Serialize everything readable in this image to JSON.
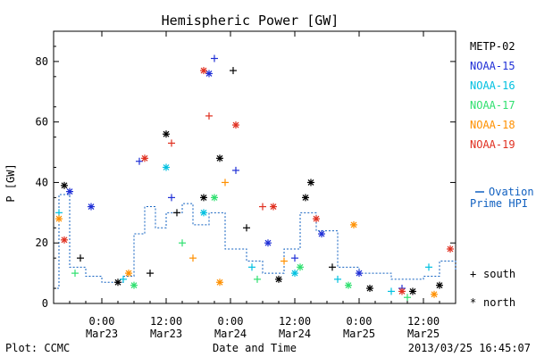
{
  "chart_data": {
    "type": "scatter",
    "title": "Hemispheric Power [GW]",
    "xlabel": "Date and Time",
    "ylabel": "P [GW]",
    "xlim": [
      "2013-03-22T15:00",
      "2013-03-25T18:00"
    ],
    "ylim": [
      0,
      90
    ],
    "yticks": [
      0,
      20,
      40,
      60,
      80
    ],
    "xticks": [
      {
        "at": "2013-03-23T00:00",
        "time": "0:00",
        "date": "Mar23"
      },
      {
        "at": "2013-03-23T12:00",
        "time": "12:00",
        "date": "Mar23"
      },
      {
        "at": "2013-03-24T00:00",
        "time": "0:00",
        "date": "Mar24"
      },
      {
        "at": "2013-03-24T12:00",
        "time": "12:00",
        "date": "Mar24"
      },
      {
        "at": "2013-03-25T00:00",
        "time": "0:00",
        "date": "Mar25"
      },
      {
        "at": "2013-03-25T12:00",
        "time": "12:00",
        "date": "Mar25"
      }
    ],
    "series": [
      {
        "name": "METP-02",
        "color": "#000000",
        "points": [
          [
            "2013-03-22T17:00",
            39,
            "north"
          ],
          [
            "2013-03-22T20:00",
            15,
            "south"
          ],
          [
            "2013-03-23T03:00",
            7,
            "north"
          ],
          [
            "2013-03-23T09:00",
            10,
            "south"
          ],
          [
            "2013-03-23T12:00",
            56,
            "north"
          ],
          [
            "2013-03-23T14:00",
            30,
            "south"
          ],
          [
            "2013-03-23T19:00",
            35,
            "north"
          ],
          [
            "2013-03-23T22:00",
            48,
            "north"
          ],
          [
            "2013-03-24T00:30",
            77,
            "south"
          ],
          [
            "2013-03-24T03:00",
            25,
            "south"
          ],
          [
            "2013-03-24T09:00",
            8,
            "north"
          ],
          [
            "2013-03-24T14:00",
            35,
            "north"
          ],
          [
            "2013-03-24T15:00",
            40,
            "north"
          ],
          [
            "2013-03-24T19:00",
            12,
            "south"
          ],
          [
            "2013-03-25T02:00",
            5,
            "north"
          ],
          [
            "2013-03-25T10:00",
            4,
            "north"
          ],
          [
            "2013-03-25T15:00",
            6,
            "north"
          ]
        ]
      },
      {
        "name": "NOAA-15",
        "color": "#1f2fd6",
        "points": [
          [
            "2013-03-22T18:00",
            37,
            "north"
          ],
          [
            "2013-03-22T22:00",
            32,
            "north"
          ],
          [
            "2013-03-23T07:00",
            47,
            "south"
          ],
          [
            "2013-03-23T13:00",
            35,
            "south"
          ],
          [
            "2013-03-23T20:00",
            76,
            "north"
          ],
          [
            "2013-03-23T21:00",
            81,
            "south"
          ],
          [
            "2013-03-24T01:00",
            44,
            "south"
          ],
          [
            "2013-03-24T07:00",
            20,
            "north"
          ],
          [
            "2013-03-24T12:00",
            15,
            "south"
          ],
          [
            "2013-03-24T17:00",
            23,
            "north"
          ],
          [
            "2013-03-25T00:00",
            10,
            "north"
          ],
          [
            "2013-03-25T08:00",
            5,
            "south"
          ]
        ]
      },
      {
        "name": "NOAA-16",
        "color": "#00c0e0",
        "points": [
          [
            "2013-03-22T16:00",
            30,
            "south"
          ],
          [
            "2013-03-23T04:00",
            8,
            "south"
          ],
          [
            "2013-03-23T12:00",
            45,
            "north"
          ],
          [
            "2013-03-23T19:00",
            30,
            "north"
          ],
          [
            "2013-03-24T04:00",
            12,
            "south"
          ],
          [
            "2013-03-24T12:00",
            10,
            "north"
          ],
          [
            "2013-03-24T20:00",
            8,
            "south"
          ],
          [
            "2013-03-25T06:00",
            4,
            "south"
          ],
          [
            "2013-03-25T13:00",
            12,
            "south"
          ]
        ]
      },
      {
        "name": "NOAA-17",
        "color": "#30e070",
        "points": [
          [
            "2013-03-22T19:00",
            10,
            "south"
          ],
          [
            "2013-03-23T06:00",
            6,
            "north"
          ],
          [
            "2013-03-23T15:00",
            20,
            "south"
          ],
          [
            "2013-03-23T21:00",
            35,
            "north"
          ],
          [
            "2013-03-24T05:00",
            8,
            "south"
          ],
          [
            "2013-03-24T13:00",
            12,
            "north"
          ],
          [
            "2013-03-24T22:00",
            6,
            "north"
          ],
          [
            "2013-03-25T09:00",
            2,
            "south"
          ]
        ]
      },
      {
        "name": "NOAA-18",
        "color": "#ff9000",
        "points": [
          [
            "2013-03-22T16:00",
            28,
            "north"
          ],
          [
            "2013-03-23T05:00",
            10,
            "north"
          ],
          [
            "2013-03-23T17:00",
            15,
            "south"
          ],
          [
            "2013-03-23T23:00",
            40,
            "south"
          ],
          [
            "2013-03-23T22:00",
            7,
            "north"
          ],
          [
            "2013-03-24T10:00",
            14,
            "south"
          ],
          [
            "2013-03-24T23:00",
            26,
            "north"
          ],
          [
            "2013-03-25T14:00",
            3,
            "north"
          ]
        ]
      },
      {
        "name": "NOAA-19",
        "color": "#e03020",
        "points": [
          [
            "2013-03-22T17:00",
            21,
            "north"
          ],
          [
            "2013-03-23T08:00",
            48,
            "north"
          ],
          [
            "2013-03-23T13:00",
            53,
            "south"
          ],
          [
            "2013-03-23T19:00",
            77,
            "north"
          ],
          [
            "2013-03-23T20:00",
            62,
            "south"
          ],
          [
            "2013-03-24T01:00",
            59,
            "north"
          ],
          [
            "2013-03-24T06:00",
            32,
            "south"
          ],
          [
            "2013-03-24T08:00",
            32,
            "north"
          ],
          [
            "2013-03-24T16:00",
            28,
            "north"
          ],
          [
            "2013-03-25T08:00",
            4,
            "north"
          ],
          [
            "2013-03-25T17:00",
            18,
            "north"
          ]
        ]
      }
    ],
    "legend": [
      "METP-02",
      "NOAA-15",
      "NOAA-16",
      "NOAA-17",
      "NOAA-18",
      "NOAA-19"
    ],
    "legend_position": "right",
    "ovation": {
      "name": "Ovation Prime HPI",
      "legend_line1": "Ovation",
      "legend_line2": "Prime HPI",
      "color": "#1060c0",
      "points": [
        [
          "2013-03-22T15:00",
          5
        ],
        [
          "2013-03-22T16:00",
          36
        ],
        [
          "2013-03-22T18:00",
          12
        ],
        [
          "2013-03-22T21:00",
          9
        ],
        [
          "2013-03-23T00:00",
          7
        ],
        [
          "2013-03-23T04:00",
          9
        ],
        [
          "2013-03-23T06:00",
          23
        ],
        [
          "2013-03-23T08:00",
          32
        ],
        [
          "2013-03-23T10:00",
          25
        ],
        [
          "2013-03-23T12:00",
          30
        ],
        [
          "2013-03-23T15:00",
          33
        ],
        [
          "2013-03-23T17:00",
          26
        ],
        [
          "2013-03-23T20:00",
          30
        ],
        [
          "2013-03-23T23:00",
          18
        ],
        [
          "2013-03-24T03:00",
          14
        ],
        [
          "2013-03-24T06:00",
          10
        ],
        [
          "2013-03-24T10:00",
          18
        ],
        [
          "2013-03-24T13:00",
          30
        ],
        [
          "2013-03-24T16:00",
          24
        ],
        [
          "2013-03-24T20:00",
          12
        ],
        [
          "2013-03-25T00:00",
          10
        ],
        [
          "2013-03-25T06:00",
          8
        ],
        [
          "2013-03-25T12:00",
          9
        ],
        [
          "2013-03-25T15:00",
          14
        ],
        [
          "2013-03-25T18:00",
          11
        ]
      ]
    },
    "marker_legend": {
      "south": "south",
      "north": "north",
      "south_symbol": "+",
      "north_symbol": "*"
    }
  },
  "footer": {
    "left": "Plot: CCMC",
    "right": "2013/03/25 16:45:07"
  }
}
